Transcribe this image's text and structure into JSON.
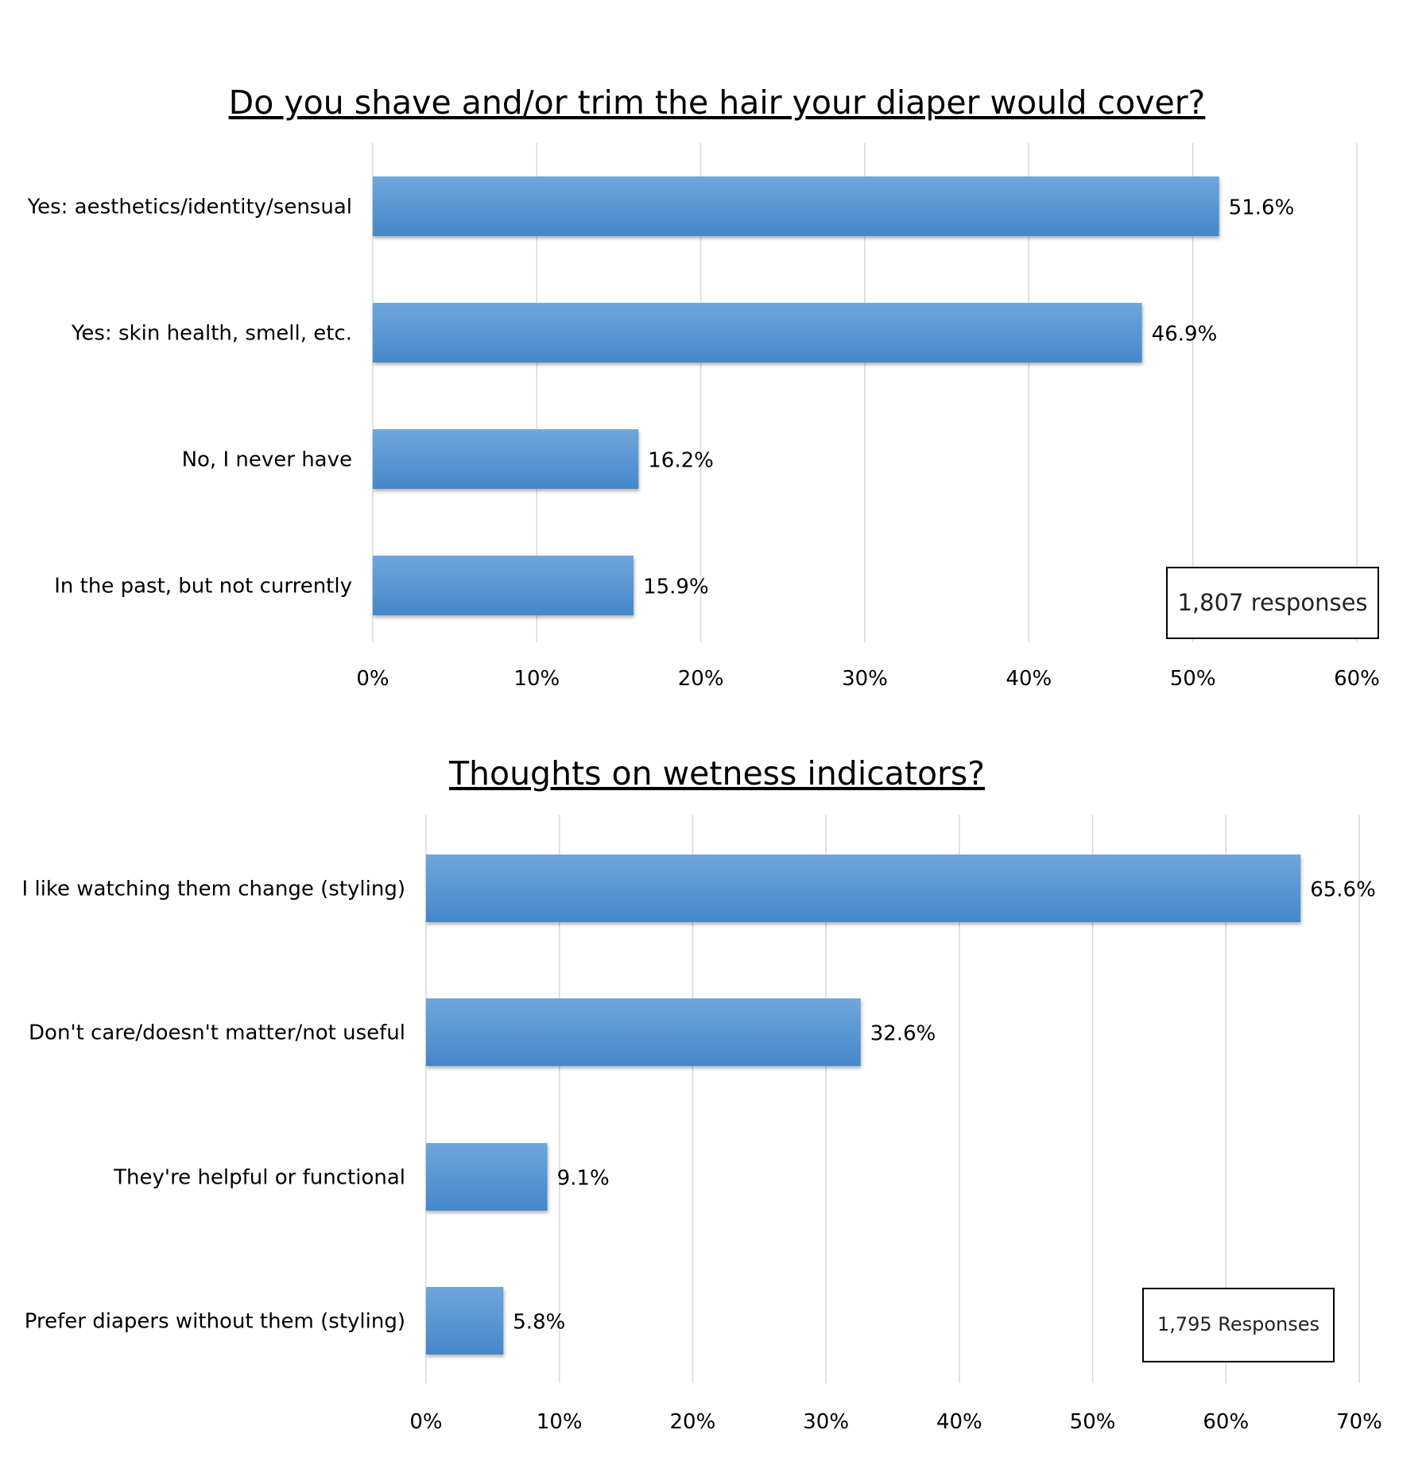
{
  "chart_data": [
    {
      "type": "bar",
      "orientation": "horizontal",
      "title": "Do you shave and/or trim the hair your diaper would cover?",
      "categories": [
        "Yes: aesthetics/identity/sensual",
        "Yes: skin health, smell, etc.",
        "No, I never have",
        "In the past, but not currently"
      ],
      "values": [
        51.6,
        46.9,
        16.2,
        15.9
      ],
      "value_labels": [
        "51.6%",
        "46.9%",
        "16.2%",
        "15.9%"
      ],
      "xlim": [
        0,
        60
      ],
      "ticks": [
        "0%",
        "10%",
        "20%",
        "30%",
        "40%",
        "50%",
        "60%"
      ],
      "grid": true,
      "note": "1,807 responses",
      "bar_color": "#5b9bd5"
    },
    {
      "type": "bar",
      "orientation": "horizontal",
      "title": "Thoughts on wetness indicators?",
      "categories": [
        "I like watching them change (styling)",
        "Don't care/doesn't matter/not useful",
        "They're helpful or functional",
        "Prefer diapers without them (styling)"
      ],
      "values": [
        65.6,
        32.6,
        9.1,
        5.8
      ],
      "value_labels": [
        "65.6%",
        "32.6%",
        "9.1%",
        "5.8%"
      ],
      "xlim": [
        0,
        70
      ],
      "ticks": [
        "0%",
        "10%",
        "20%",
        "30%",
        "40%",
        "50%",
        "60%",
        "70%"
      ],
      "grid": true,
      "note": "1,795 Responses",
      "bar_color": "#5b9bd5"
    }
  ]
}
